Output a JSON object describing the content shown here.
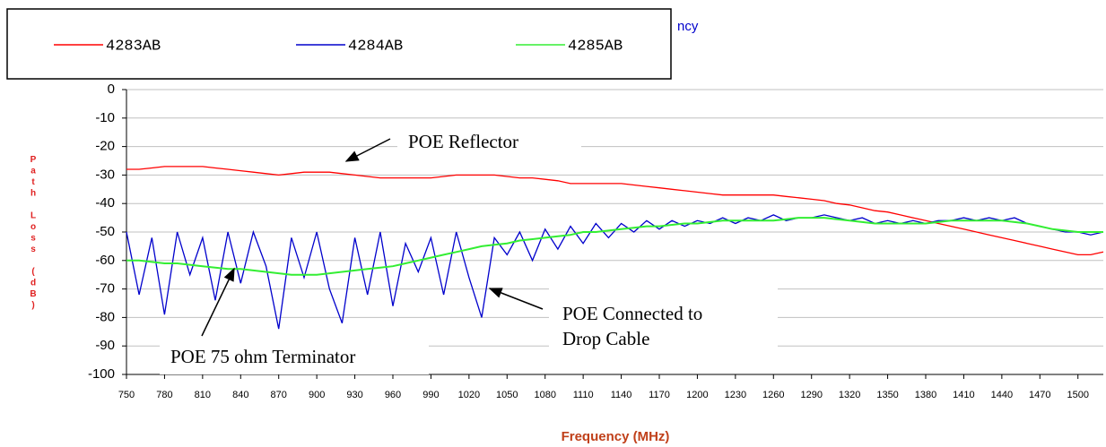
{
  "chart_data": {
    "type": "line",
    "title": "ncy",
    "y_label": "Path Loss (dB)",
    "x_label": "Frequency (MHz)",
    "x": [
      750,
      760,
      770,
      780,
      790,
      800,
      810,
      820,
      830,
      840,
      850,
      860,
      870,
      880,
      890,
      900,
      910,
      920,
      930,
      940,
      950,
      960,
      970,
      980,
      990,
      1000,
      1010,
      1020,
      1030,
      1040,
      1050,
      1060,
      1070,
      1080,
      1090,
      1100,
      1110,
      1120,
      1130,
      1140,
      1150,
      1160,
      1170,
      1180,
      1190,
      1200,
      1210,
      1220,
      1230,
      1240,
      1250,
      1260,
      1270,
      1280,
      1290,
      1300,
      1310,
      1320,
      1330,
      1340,
      1350,
      1360,
      1370,
      1380,
      1390,
      1400,
      1410,
      1420,
      1430,
      1440,
      1450,
      1460,
      1470,
      1480,
      1490,
      1500,
      1510,
      1520
    ],
    "series": [
      {
        "name": "4283AB",
        "color": "#ff0000",
        "values": [
          -28,
          -28,
          -27.5,
          -27,
          -27,
          -27,
          -27,
          -27.5,
          -28,
          -28.5,
          -29,
          -29.5,
          -30,
          -29.5,
          -29,
          -29,
          -29,
          -29.5,
          -30,
          -30.5,
          -31,
          -31,
          -31,
          -31,
          -31,
          -30.5,
          -30,
          -30,
          -30,
          -30,
          -30.5,
          -31,
          -31,
          -31.5,
          -32,
          -33,
          -33,
          -33,
          -33,
          -33,
          -33.5,
          -34,
          -34.5,
          -35,
          -35.5,
          -36,
          -36.5,
          -37,
          -37,
          -37,
          -37,
          -37,
          -37.5,
          -38,
          -38.5,
          -39,
          -40,
          -40.5,
          -41.5,
          -42.5,
          -43,
          -44,
          -45,
          -46,
          -47,
          -48,
          -49,
          -50,
          -51,
          -52,
          -53,
          -54,
          -55,
          -56,
          -57,
          -58,
          -58,
          -57
        ]
      },
      {
        "name": "4284AB",
        "color": "#0000cc",
        "values": [
          -50,
          -72,
          -52,
          -79,
          -50,
          -65,
          -52,
          -74,
          -50,
          -68,
          -50,
          -62,
          -84,
          -52,
          -66,
          -50,
          -70,
          -82,
          -52,
          -72,
          -50,
          -76,
          -54,
          -64,
          -52,
          -72,
          -50,
          -66,
          -80,
          -52,
          -58,
          -50,
          -60,
          -49,
          -56,
          -48,
          -54,
          -47,
          -52,
          -47,
          -50,
          -46,
          -49,
          -46,
          -48,
          -46,
          -47,
          -45,
          -47,
          -45,
          -46,
          -44,
          -46,
          -45,
          -45,
          -44,
          -45,
          -46,
          -45,
          -47,
          -46,
          -47,
          -46,
          -47,
          -46,
          -46,
          -45,
          -46,
          -45,
          -46,
          -45,
          -47,
          -48,
          -49,
          -50,
          -50,
          -51,
          -50
        ]
      },
      {
        "name": "4285AB",
        "color": "#33ee33",
        "values": [
          -60,
          -60,
          -60.5,
          -61,
          -61,
          -61.5,
          -62,
          -62.5,
          -63,
          -63,
          -63.5,
          -64,
          -64.5,
          -65,
          -65,
          -65,
          -64.5,
          -64,
          -63.5,
          -63,
          -62.5,
          -62,
          -61,
          -60,
          -59,
          -58,
          -57,
          -56,
          -55,
          -54.5,
          -54,
          -53,
          -52.5,
          -52,
          -51.5,
          -51,
          -50,
          -50,
          -49.5,
          -49,
          -48.5,
          -48,
          -48,
          -47.5,
          -47,
          -47,
          -46.5,
          -46,
          -46,
          -46,
          -46,
          -46,
          -45.5,
          -45,
          -45,
          -45,
          -45.5,
          -46,
          -46.5,
          -47,
          -47,
          -47,
          -47,
          -47,
          -46.5,
          -46,
          -46,
          -46,
          -46,
          -46,
          -46.5,
          -47,
          -48,
          -49,
          -49.5,
          -50,
          -50,
          -50
        ]
      }
    ],
    "xlim": [
      750,
      1520
    ],
    "xticks": [
      750,
      780,
      810,
      840,
      870,
      900,
      930,
      960,
      990,
      1020,
      1050,
      1080,
      1110,
      1140,
      1170,
      1200,
      1230,
      1260,
      1290,
      1320,
      1350,
      1380,
      1410,
      1440,
      1470,
      1500
    ],
    "ylim": [
      -100,
      0
    ],
    "yticks": [
      0,
      -10,
      -20,
      -30,
      -40,
      -50,
      -60,
      -70,
      -80,
      -90,
      -100
    ],
    "grid": true,
    "annotations": [
      "POE Reflector",
      "POE 75 ohm Terminator",
      "POE Connected to",
      "Drop Cable"
    ]
  }
}
